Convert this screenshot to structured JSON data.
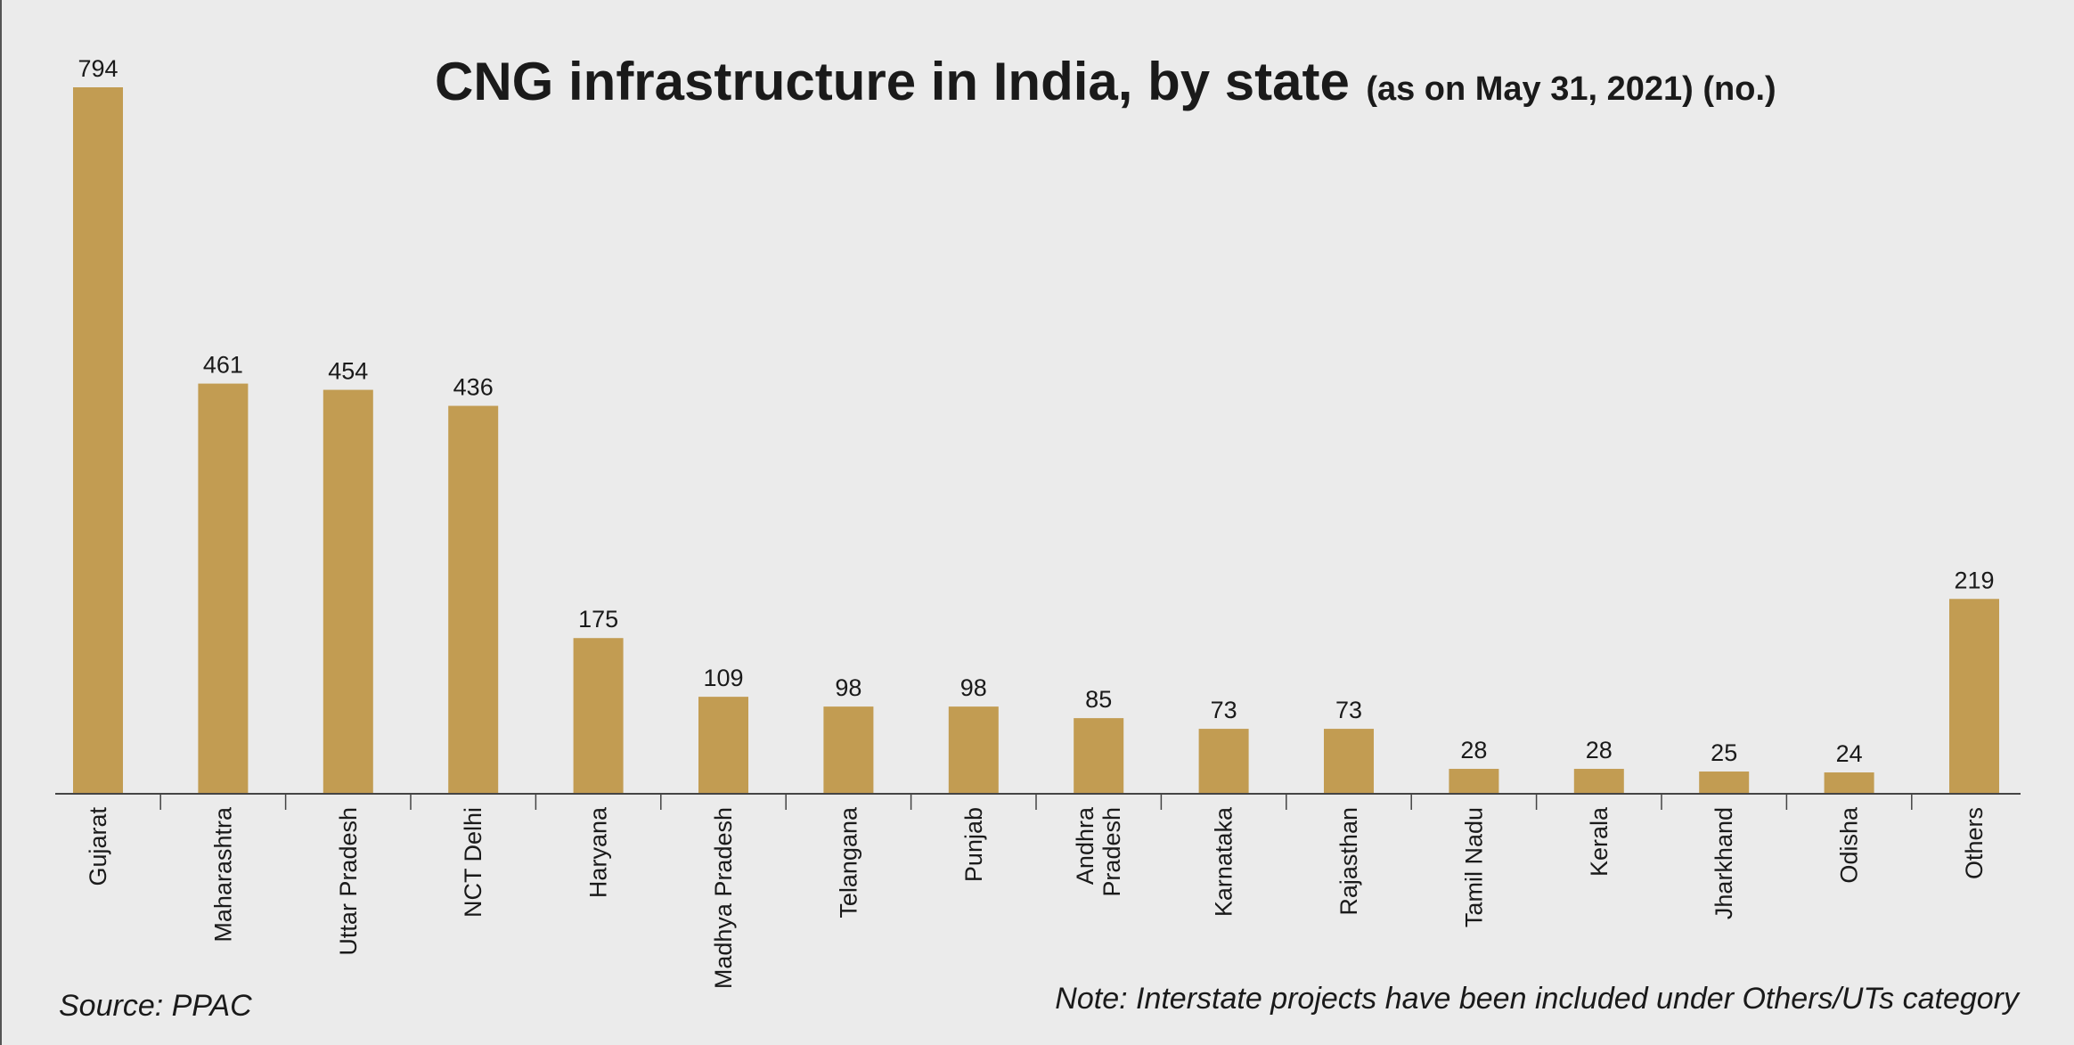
{
  "chart_data": {
    "type": "bar",
    "title": "CNG infrastructure in India, by state",
    "subtitle": "(as on May 31, 2021) (no.)",
    "categories": [
      "Gujarat",
      "Maharashtra",
      "Uttar Pradesh",
      "NCT Delhi",
      "Haryana",
      "Madhya Pradesh",
      "Telangana",
      "Punjab",
      "Andhra Pradesh",
      "Karnataka",
      "Rajasthan",
      "Tamil Nadu",
      "Kerala",
      "Jharkhand",
      "Odisha",
      "Others"
    ],
    "values": [
      794,
      461,
      454,
      436,
      175,
      109,
      98,
      98,
      85,
      73,
      73,
      28,
      28,
      25,
      24,
      219
    ],
    "xlabel": "",
    "ylabel": "",
    "ylim": [
      0,
      794
    ],
    "grid": false,
    "data_labels": true,
    "bar_color": "#c29c52",
    "source": "Source: PPAC",
    "note": "Note: Interstate projects have been included under Others/UTs category"
  }
}
